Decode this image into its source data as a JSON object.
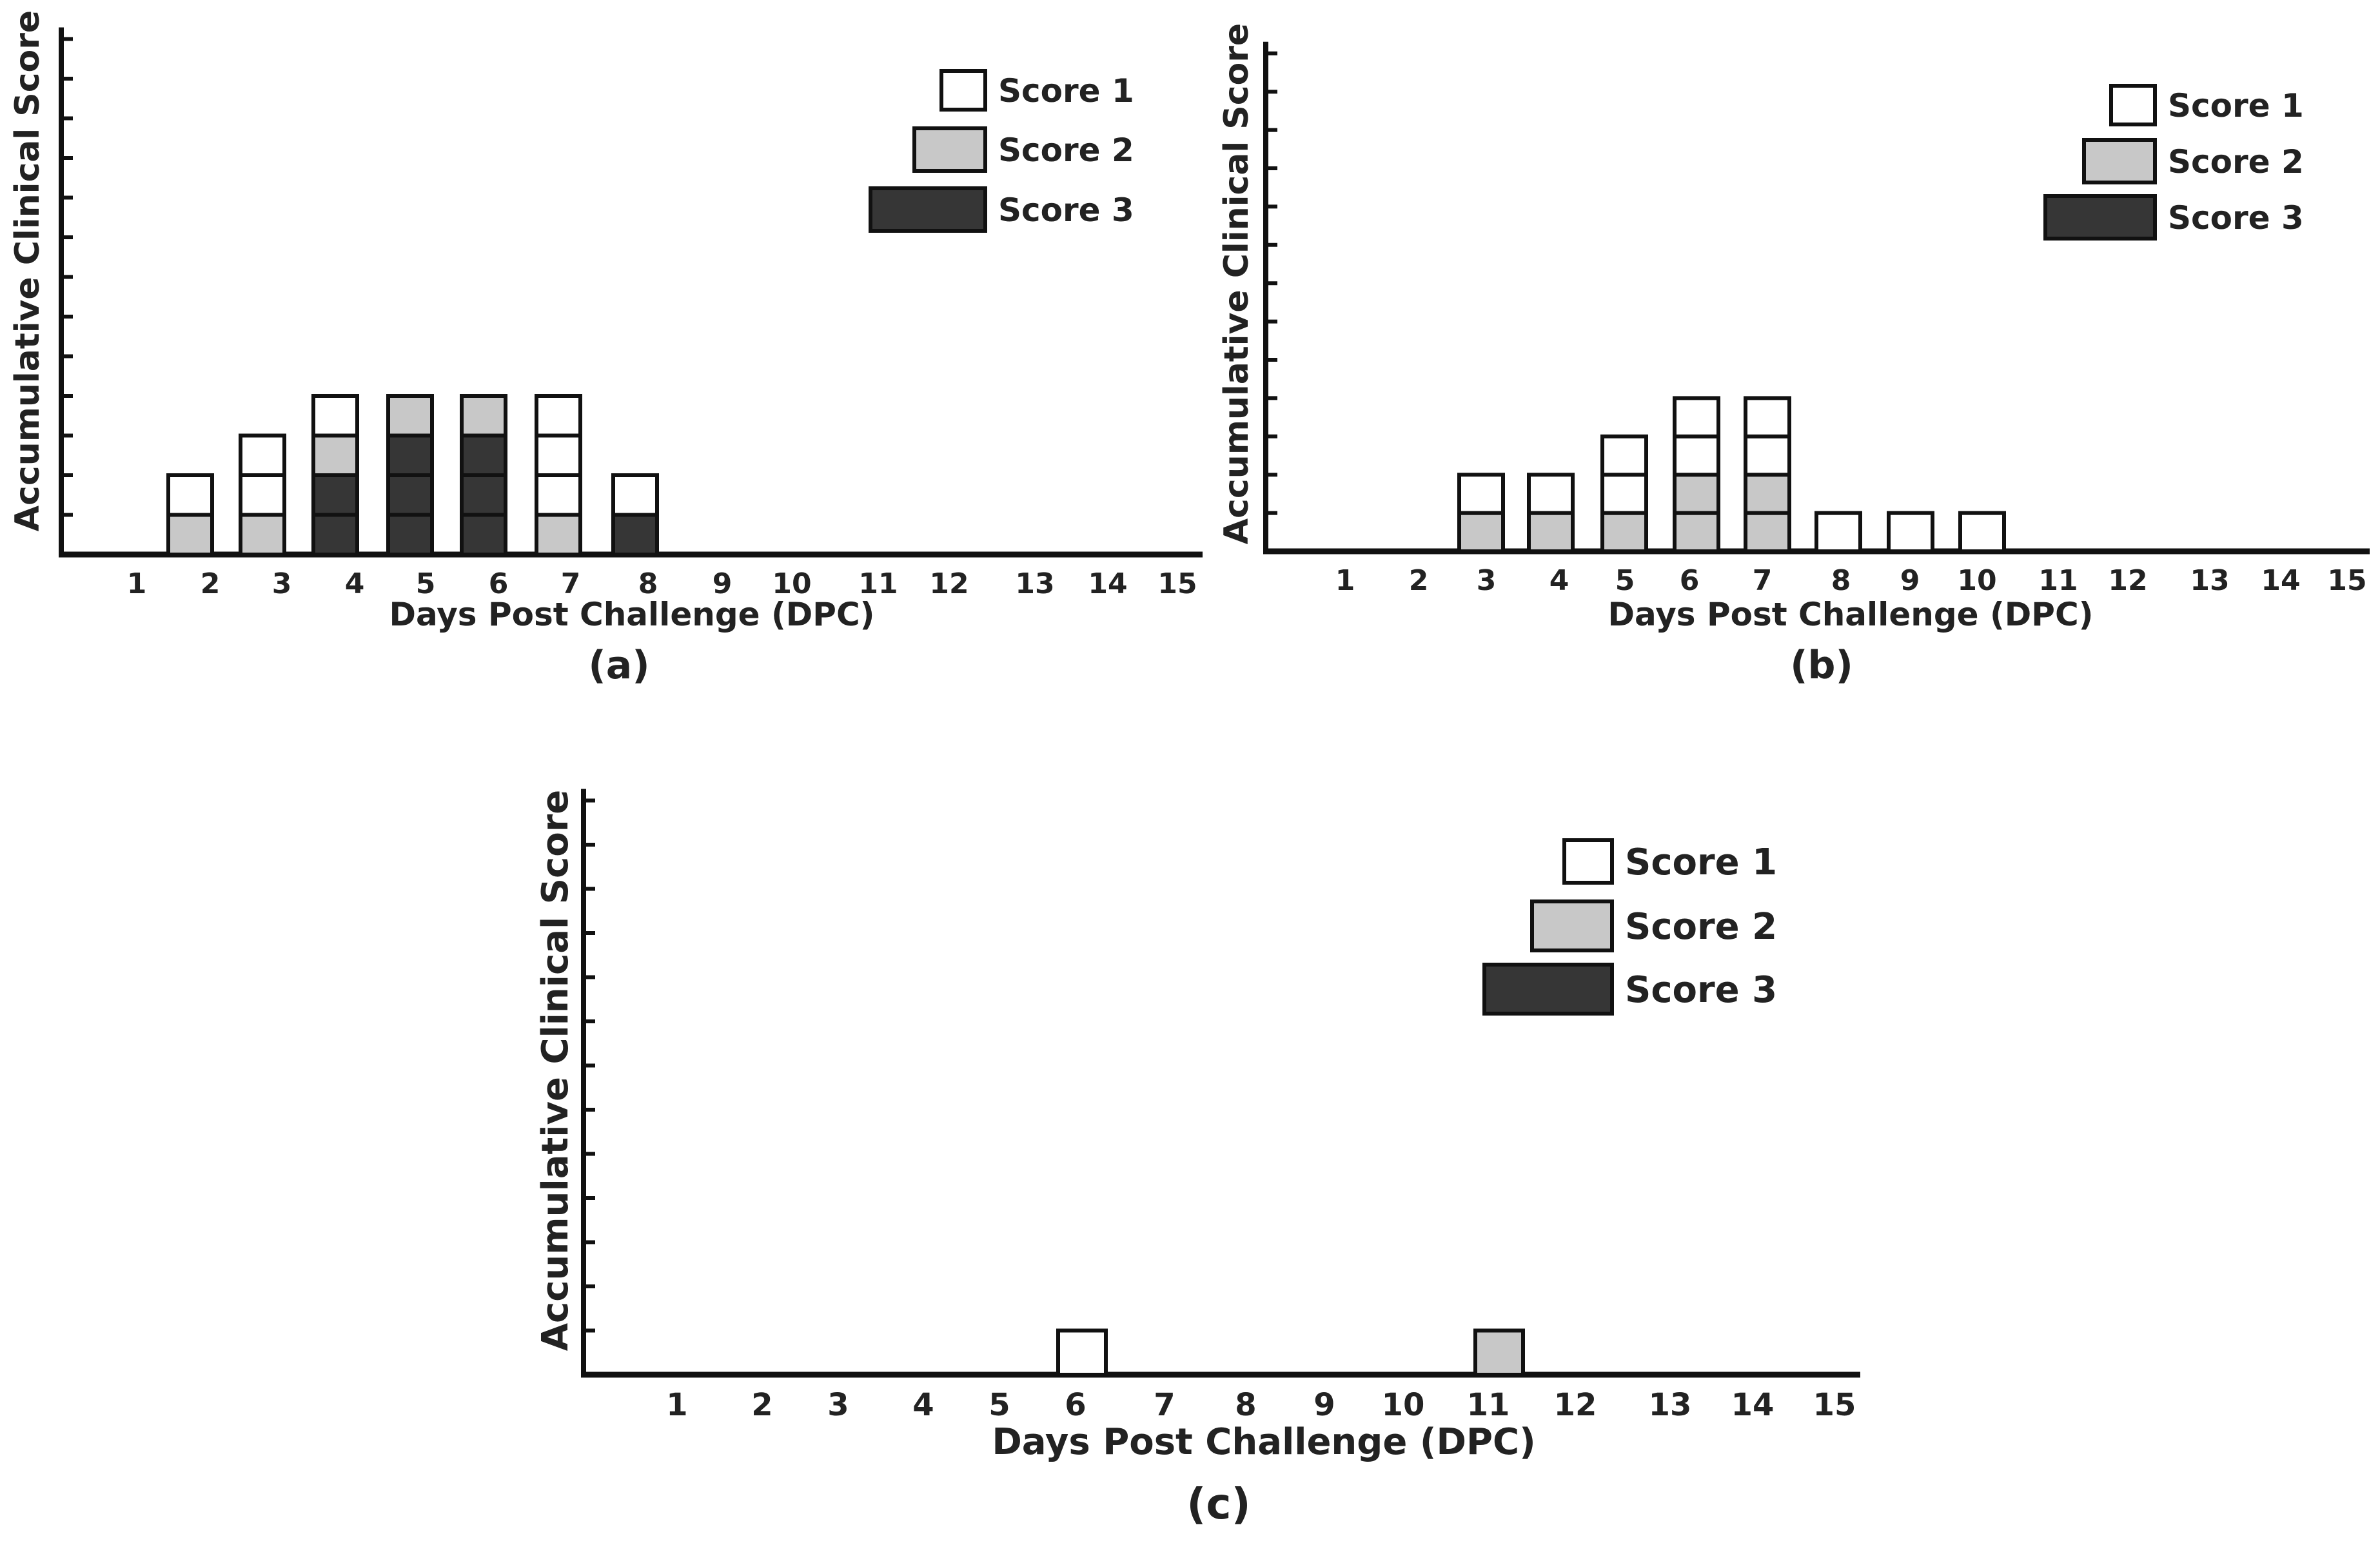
{
  "figure": {
    "panels": [
      {
        "id": "a",
        "caption": "(a)"
      },
      {
        "id": "b",
        "caption": "(b)"
      },
      {
        "id": "c",
        "caption": "(c)"
      }
    ]
  },
  "colors": {
    "score1": "#ffffff",
    "score2": "#c8c8c8",
    "score3": "#363636",
    "stroke": "#111111",
    "text": "#222222"
  },
  "chart_data": [
    {
      "panel": "(a)",
      "type": "bar",
      "stacked": true,
      "categories": [
        "1",
        "2",
        "3",
        "4",
        "5",
        "6",
        "7",
        "8",
        "9",
        "10",
        "11",
        "12",
        "13",
        "14",
        "15"
      ],
      "xlabel": "Days Post Challenge (DPC)",
      "ylabel": "Accumulative Clinical Score",
      "ylim": [
        0,
        13
      ],
      "legend": [
        "Score 1",
        "Score 2",
        "Score 3"
      ],
      "series": [
        {
          "name": "Score 3",
          "values": [
            0,
            0,
            0,
            2,
            3,
            3,
            0,
            1,
            0,
            0,
            0,
            0,
            0,
            0,
            0
          ]
        },
        {
          "name": "Score 2",
          "values": [
            0,
            1,
            1,
            1,
            1,
            1,
            1,
            0,
            0,
            0,
            0,
            0,
            0,
            0,
            0
          ]
        },
        {
          "name": "Score 1",
          "values": [
            0,
            1,
            2,
            1,
            0,
            0,
            3,
            1,
            0,
            0,
            0,
            0,
            0,
            0,
            0
          ]
        }
      ]
    },
    {
      "panel": "(b)",
      "type": "bar",
      "stacked": true,
      "categories": [
        "1",
        "2",
        "3",
        "4",
        "5",
        "6",
        "7",
        "8",
        "9",
        "10",
        "11",
        "12",
        "13",
        "14",
        "15"
      ],
      "xlabel": "Days Post Challenge (DPC)",
      "ylabel": "Accumulative Clinical Score",
      "ylim": [
        0,
        13
      ],
      "legend": [
        "Score 1",
        "Score 2",
        "Score 3"
      ],
      "series": [
        {
          "name": "Score 3",
          "values": [
            0,
            0,
            0,
            0,
            0,
            0,
            0,
            0,
            0,
            0,
            0,
            0,
            0,
            0,
            0
          ]
        },
        {
          "name": "Score 2",
          "values": [
            0,
            0,
            1,
            1,
            1,
            2,
            2,
            0,
            0,
            0,
            0,
            0,
            0,
            0,
            0
          ]
        },
        {
          "name": "Score 1",
          "values": [
            0,
            0,
            1,
            1,
            2,
            2,
            2,
            1,
            1,
            1,
            0,
            0,
            0,
            0,
            0
          ]
        }
      ]
    },
    {
      "panel": "(c)",
      "type": "bar",
      "stacked": true,
      "categories": [
        "1",
        "2",
        "3",
        "4",
        "5",
        "6",
        "7",
        "8",
        "9",
        "10",
        "11",
        "12",
        "13",
        "14",
        "15"
      ],
      "xlabel": "Days Post Challenge (DPC)",
      "ylabel": "Accumulative Clinical Score",
      "ylim": [
        0,
        13
      ],
      "legend": [
        "Score 1",
        "Score 2",
        "Score 3"
      ],
      "series": [
        {
          "name": "Score 3",
          "values": [
            0,
            0,
            0,
            0,
            0,
            0,
            0,
            0,
            0,
            0,
            0,
            0,
            0,
            0,
            0
          ]
        },
        {
          "name": "Score 2",
          "values": [
            0,
            0,
            0,
            0,
            0,
            0,
            0,
            0,
            0,
            0,
            1,
            0,
            0,
            0,
            0
          ]
        },
        {
          "name": "Score 1",
          "values": [
            0,
            0,
            0,
            0,
            0,
            1,
            0,
            0,
            0,
            0,
            0,
            0,
            0,
            0,
            0
          ]
        }
      ]
    }
  ]
}
